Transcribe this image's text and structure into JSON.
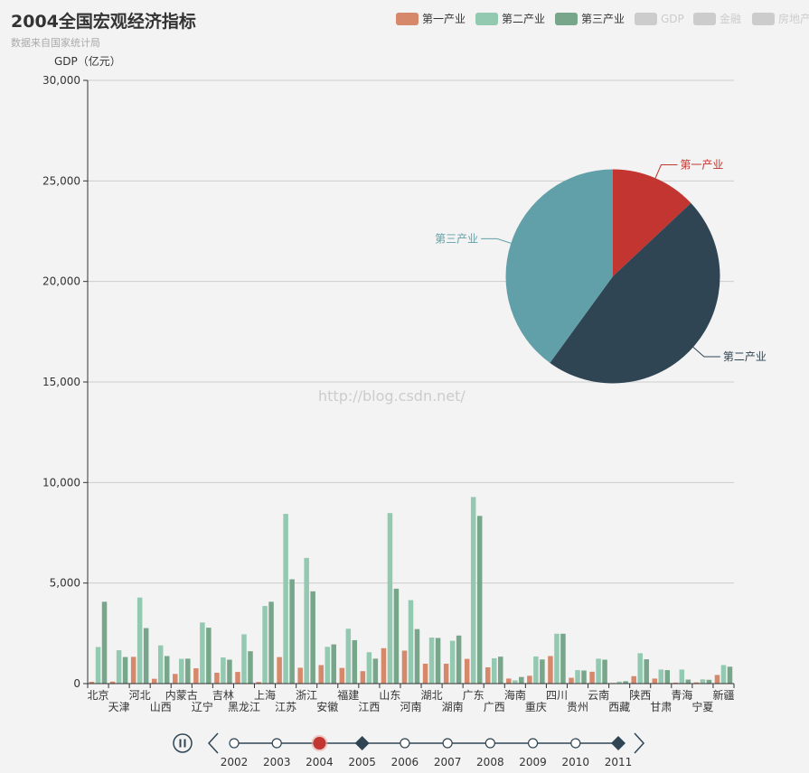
{
  "chart_data": {
    "type": "bar",
    "title": "2004全国宏观经济指标",
    "subtitle": "数据来自国家统计局",
    "ylabel": "GDP（亿元）",
    "ylim": [
      0,
      30000
    ],
    "yticks": [
      0,
      5000,
      10000,
      15000,
      20000,
      25000,
      30000
    ],
    "ytick_labels": [
      "0",
      "5,000",
      "10,000",
      "15,000",
      "20,000",
      "25,000",
      "30,000"
    ],
    "grid": true,
    "legend_position": "top-right",
    "categories": [
      "北京",
      "天津",
      "河北",
      "山西",
      "内蒙古",
      "辽宁",
      "吉林",
      "黑龙江",
      "上海",
      "江苏",
      "浙江",
      "安徽",
      "福建",
      "江西",
      "山东",
      "河南",
      "湖北",
      "湖南",
      "广东",
      "广西",
      "海南",
      "重庆",
      "四川",
      "贵州",
      "云南",
      "西藏",
      "陕西",
      "甘肃",
      "青海",
      "宁夏",
      "新疆"
    ],
    "series": [
      {
        "name": "第一产业",
        "color": "#d6886b",
        "values": [
          90,
          100,
          1330,
          240,
          480,
          760,
          540,
          580,
          80,
          1320,
          790,
          920,
          780,
          620,
          1760,
          1640,
          990,
          990,
          1230,
          810,
          250,
          390,
          1370,
          290,
          590,
          30,
          370,
          250,
          50,
          60,
          430
        ]
      },
      {
        "name": "第二产业",
        "color": "#93c9b0",
        "values": [
          1820,
          1660,
          4280,
          1900,
          1230,
          3040,
          1300,
          2450,
          3860,
          8440,
          6250,
          1830,
          2730,
          1560,
          8480,
          4150,
          2290,
          2130,
          9280,
          1260,
          160,
          1350,
          2480,
          670,
          1240,
          100,
          1510,
          700,
          700,
          210,
          920
        ]
      },
      {
        "name": "第三产业",
        "color": "#77a68a",
        "values": [
          4070,
          1320,
          2760,
          1370,
          1240,
          2780,
          1190,
          1610,
          4070,
          5190,
          4590,
          1950,
          2160,
          1240,
          4720,
          2710,
          2270,
          2390,
          8340,
          1340,
          330,
          1200,
          2480,
          650,
          1190,
          120,
          1210,
          670,
          200,
          190,
          840
        ]
      }
    ],
    "legend_inactive": [
      "GDP",
      "金融",
      "房地产"
    ],
    "inactive_color": "#cccccc",
    "pie": {
      "type": "pie",
      "slices": [
        {
          "name": "第一产业",
          "value": 13,
          "color": "#c23531"
        },
        {
          "name": "第二产业",
          "value": 47,
          "color": "#2f4554"
        },
        {
          "name": "第三产业",
          "value": 40,
          "color": "#61a0a8"
        }
      ]
    },
    "timeline": {
      "years": [
        "2002",
        "2003",
        "2004",
        "2005",
        "2006",
        "2007",
        "2008",
        "2009",
        "2010",
        "2011"
      ],
      "current": "2004",
      "diamonds": [
        "2005",
        "2011"
      ],
      "play_state": "pause"
    },
    "watermark": "http://blog.csdn.net/"
  }
}
